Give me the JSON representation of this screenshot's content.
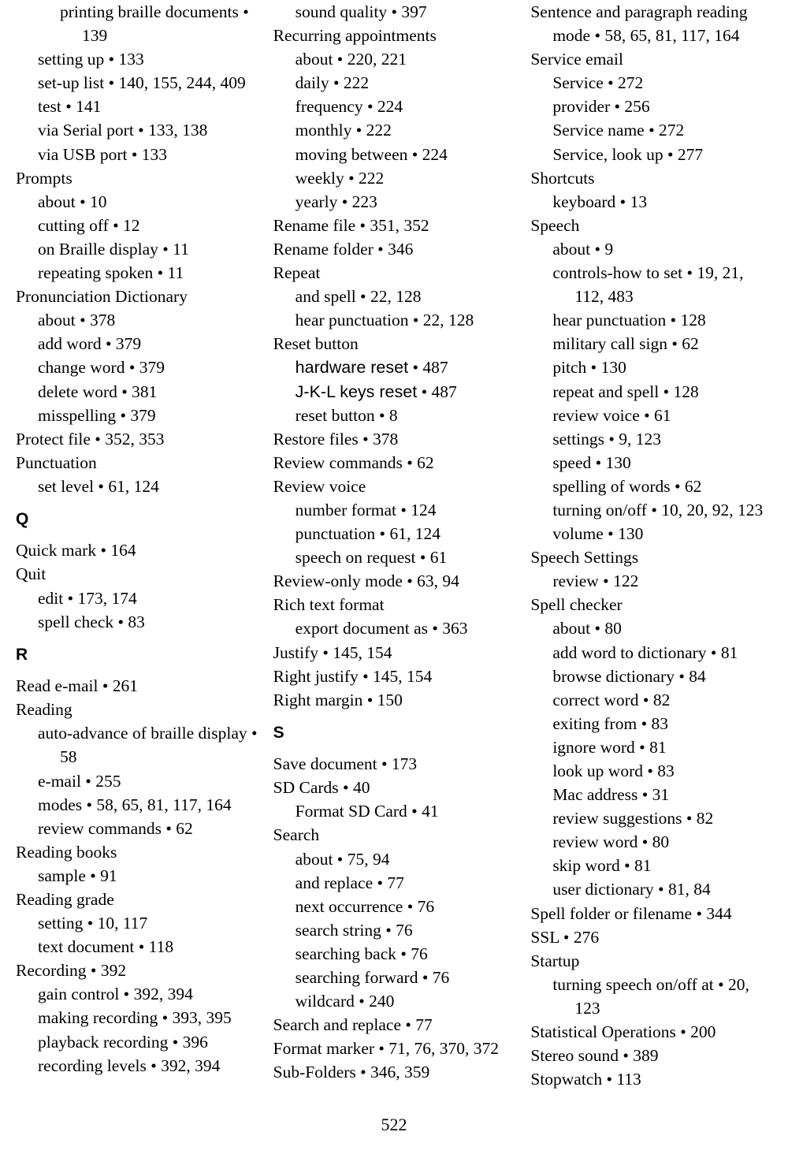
{
  "page_number": "522",
  "lines": [
    {
      "level": 2,
      "text": "printing braille documents • 139"
    },
    {
      "level": 1,
      "text": "setting up • 133"
    },
    {
      "level": 1,
      "text": "set-up list • 140, 155, 244, 409"
    },
    {
      "level": 1,
      "text": "test • 141"
    },
    {
      "level": 1,
      "text": "via Serial port • 133, 138"
    },
    {
      "level": 1,
      "text": "via USB port • 133"
    },
    {
      "level": 0,
      "text": "Prompts"
    },
    {
      "level": 1,
      "text": "about • 10"
    },
    {
      "level": 1,
      "text": "cutting off • 12"
    },
    {
      "level": 1,
      "text": "on Braille display • 11"
    },
    {
      "level": 1,
      "text": "repeating spoken • 11"
    },
    {
      "level": 0,
      "text": "Pronunciation Dictionary"
    },
    {
      "level": 1,
      "text": "about • 378"
    },
    {
      "level": 1,
      "text": "add word • 379"
    },
    {
      "level": 1,
      "text": "change word • 379"
    },
    {
      "level": 1,
      "text": "delete word • 381"
    },
    {
      "level": 1,
      "text": "misspelling • 379"
    },
    {
      "level": 0,
      "text": "Protect file • 352, 353"
    },
    {
      "level": 0,
      "text": "Punctuation"
    },
    {
      "level": 1,
      "text": "set level • 61, 124"
    },
    {
      "section": "Q"
    },
    {
      "level": 0,
      "text": "Quick mark • 164"
    },
    {
      "level": 0,
      "text": "Quit"
    },
    {
      "level": 1,
      "text": "edit • 173, 174"
    },
    {
      "level": 1,
      "text": "spell check • 83"
    },
    {
      "section": "R"
    },
    {
      "level": 0,
      "text": "Read e-mail • 261"
    },
    {
      "level": 0,
      "text": "Reading"
    },
    {
      "level": 1,
      "text": "auto-advance of braille display • 58"
    },
    {
      "level": 1,
      "text": "e-mail • 255"
    },
    {
      "level": 1,
      "text": "modes • 58, 65, 81, 117, 164"
    },
    {
      "level": 1,
      "text": "review commands • 62"
    },
    {
      "level": 0,
      "text": "Reading books"
    },
    {
      "level": 1,
      "text": "sample • 91"
    },
    {
      "level": 0,
      "text": "Reading grade"
    },
    {
      "level": 1,
      "text": "setting • 10, 117"
    },
    {
      "level": 1,
      "text": "text document • 118"
    },
    {
      "level": 0,
      "text": "Recording • 392"
    },
    {
      "level": 1,
      "text": "gain control • 392, 394"
    },
    {
      "level": 1,
      "text": "making recording • 393, 395"
    },
    {
      "level": 1,
      "text": "playback recording • 396"
    },
    {
      "level": 1,
      "text": "recording levels • 392, 394"
    },
    {
      "level": 1,
      "text": "sound quality • 397"
    },
    {
      "level": 0,
      "text": "Recurring appointments"
    },
    {
      "level": 1,
      "text": "about • 220, 221"
    },
    {
      "level": 1,
      "text": "daily • 222"
    },
    {
      "level": 1,
      "text": "frequency • 224"
    },
    {
      "level": 1,
      "text": "monthly • 222"
    },
    {
      "level": 1,
      "text": "moving between • 224"
    },
    {
      "level": 1,
      "text": "weekly • 222"
    },
    {
      "level": 1,
      "text": "yearly • 223"
    },
    {
      "level": 0,
      "text": "Rename file • 351, 352"
    },
    {
      "level": 0,
      "text": "Rename folder • 346"
    },
    {
      "level": 0,
      "text": "Repeat"
    },
    {
      "level": 1,
      "text": "and spell • 22, 128"
    },
    {
      "level": 1,
      "text": "hear punctuation • 22, 128"
    },
    {
      "level": 0,
      "text": "Reset button"
    },
    {
      "level": 1,
      "sans_prefix": "hardware reset",
      "suffix": " • 487"
    },
    {
      "level": 1,
      "sans_prefix": "J-K-L keys reset",
      "suffix": " • 487"
    },
    {
      "level": 1,
      "text": "reset button • 8"
    },
    {
      "level": 0,
      "text": "Restore files • 378"
    },
    {
      "level": 0,
      "text": "Review commands • 62"
    },
    {
      "level": 0,
      "text": "Review voice"
    },
    {
      "level": 1,
      "text": "number format • 124"
    },
    {
      "level": 1,
      "text": "punctuation • 61, 124"
    },
    {
      "level": 1,
      "text": "speech on request • 61"
    },
    {
      "level": 0,
      "text": "Review-only mode • 63, 94"
    },
    {
      "level": 0,
      "text": "Rich text format"
    },
    {
      "level": 1,
      "text": "export document as • 363"
    },
    {
      "level": 0,
      "text": "Justify • 145, 154"
    },
    {
      "level": 0,
      "text": "Right justify • 145, 154"
    },
    {
      "level": 0,
      "text": "Right margin • 150"
    },
    {
      "section": "S"
    },
    {
      "level": 0,
      "text": "Save document • 173"
    },
    {
      "level": 0,
      "text": "SD Cards • 40"
    },
    {
      "level": 1,
      "text": "Format SD Card • 41"
    },
    {
      "level": 0,
      "text": "Search"
    },
    {
      "level": 1,
      "text": "about • 75, 94"
    },
    {
      "level": 1,
      "text": "and replace • 77"
    },
    {
      "level": 1,
      "text": "next occurrence • 76"
    },
    {
      "level": 1,
      "text": "search string • 76"
    },
    {
      "level": 1,
      "text": "searching back • 76"
    },
    {
      "level": 1,
      "text": "searching forward • 76"
    },
    {
      "level": 1,
      "text": "wildcard • 240"
    },
    {
      "level": 0,
      "text": "Search and replace • 77"
    },
    {
      "level": 0,
      "text": "Format marker • 71, 76, 370, 372"
    },
    {
      "level": 0,
      "text": "Sub-Folders • 346, 359"
    },
    {
      "level": 0,
      "text": "Sentence and paragraph reading mode • 58, 65, 81, 117, 164"
    },
    {
      "level": 0,
      "text": "Service email"
    },
    {
      "level": 1,
      "text": "Service • 272"
    },
    {
      "level": 1,
      "text": "provider • 256"
    },
    {
      "level": 1,
      "text": "Service name • 272"
    },
    {
      "level": 1,
      "text": "Service, look up • 277"
    },
    {
      "level": 0,
      "text": "Shortcuts"
    },
    {
      "level": 1,
      "text": "keyboard • 13"
    },
    {
      "level": 0,
      "text": "Speech"
    },
    {
      "level": 1,
      "text": "about • 9"
    },
    {
      "level": 1,
      "text": "controls-how to set • 19, 21, 112, 483"
    },
    {
      "level": 1,
      "text": "hear punctuation • 128"
    },
    {
      "level": 1,
      "text": "military call sign • 62"
    },
    {
      "level": 1,
      "text": "pitch • 130"
    },
    {
      "level": 1,
      "text": "repeat and spell • 128"
    },
    {
      "level": 1,
      "text": "review voice • 61"
    },
    {
      "level": 1,
      "text": "settings • 9, 123"
    },
    {
      "level": 1,
      "text": "speed • 130"
    },
    {
      "level": 1,
      "text": "spelling of words • 62"
    },
    {
      "level": 1,
      "text": "turning on/off • 10, 20, 92, 123"
    },
    {
      "level": 1,
      "text": "volume • 130"
    },
    {
      "level": 0,
      "text": "Speech Settings"
    },
    {
      "level": 1,
      "text": "review • 122"
    },
    {
      "level": 0,
      "text": "Spell checker"
    },
    {
      "level": 1,
      "text": "about • 80"
    },
    {
      "level": 1,
      "text": "add word to dictionary • 81"
    },
    {
      "level": 1,
      "text": "browse dictionary • 84"
    },
    {
      "level": 1,
      "text": "correct word • 82"
    },
    {
      "level": 1,
      "text": "exiting from • 83"
    },
    {
      "level": 1,
      "text": "ignore word • 81"
    },
    {
      "level": 1,
      "text": "look up word • 83"
    },
    {
      "level": 1,
      "text": "Mac address • 31"
    },
    {
      "level": 1,
      "text": "review suggestions • 82"
    },
    {
      "level": 1,
      "text": "review word • 80"
    },
    {
      "level": 1,
      "text": "skip word • 81"
    },
    {
      "level": 1,
      "text": "user dictionary • 81, 84"
    },
    {
      "level": 0,
      "text": "Spell folder or filename • 344"
    },
    {
      "level": 0,
      "text": "SSL • 276"
    },
    {
      "level": 0,
      "text": "Startup"
    },
    {
      "level": 1,
      "text": "turning speech on/off at • 20, 123"
    },
    {
      "level": 0,
      "text": "Statistical Operations • 200"
    },
    {
      "level": 0,
      "text": "Stereo sound • 389"
    },
    {
      "level": 0,
      "text": "Stopwatch • 113"
    }
  ]
}
